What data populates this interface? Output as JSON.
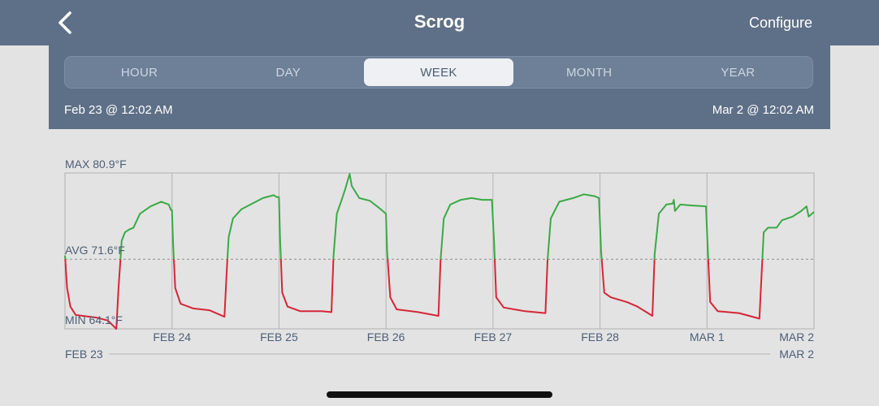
{
  "header": {
    "title": "Scrog",
    "configure_label": "Configure"
  },
  "icons": {
    "back": "chevron-left-icon"
  },
  "tabs": [
    {
      "label": "HOUR",
      "active": false
    },
    {
      "label": "DAY",
      "active": false
    },
    {
      "label": "WEEK",
      "active": true
    },
    {
      "label": "MONTH",
      "active": false
    },
    {
      "label": "YEAR",
      "active": false
    }
  ],
  "range": {
    "start": "Feb 23 @ 12:02 AM",
    "end": "Mar 2 @ 12:02 AM"
  },
  "footer_axis": {
    "start": "FEB 23",
    "end": "MAR 2"
  },
  "colors": {
    "above_avg": "#3aaa45",
    "below_avg": "#d62637",
    "header_bg": "#5e7087"
  },
  "chart_data": {
    "type": "line",
    "max_label": "MAX 80.9°F",
    "avg_label": "AVG 71.6°F",
    "min_label": "MIN 64.1°F",
    "ylim": [
      64.1,
      80.9
    ],
    "avg": 71.6,
    "xlim": [
      0,
      7
    ],
    "tick_labels": [
      "FEB 24",
      "FEB 25",
      "FEB 26",
      "FEB 27",
      "FEB 28",
      "MAR 1",
      "MAR 2"
    ],
    "tick_positions": [
      1,
      2,
      3,
      4,
      5,
      6,
      7
    ],
    "series": [
      {
        "values": [
          [
            0.0,
            72.0
          ],
          [
            0.02,
            68.5
          ],
          [
            0.05,
            66.5
          ],
          [
            0.1,
            65.6
          ],
          [
            0.3,
            65.3
          ],
          [
            0.4,
            65.0
          ],
          [
            0.48,
            64.1
          ],
          [
            0.5,
            68.5
          ],
          [
            0.53,
            73.6
          ],
          [
            0.56,
            74.5
          ],
          [
            0.6,
            74.8
          ],
          [
            0.64,
            75.0
          ],
          [
            0.7,
            76.5
          ],
          [
            0.8,
            77.3
          ],
          [
            0.9,
            77.8
          ],
          [
            0.97,
            77.5
          ],
          [
            0.99,
            76.9
          ],
          [
            1.0,
            76.9
          ],
          [
            1.01,
            73.5
          ],
          [
            1.03,
            68.5
          ],
          [
            1.08,
            66.8
          ],
          [
            1.2,
            66.3
          ],
          [
            1.35,
            66.1
          ],
          [
            1.49,
            65.4
          ],
          [
            1.51,
            70.0
          ],
          [
            1.53,
            74.0
          ],
          [
            1.57,
            76.0
          ],
          [
            1.65,
            77.0
          ],
          [
            1.75,
            77.6
          ],
          [
            1.85,
            78.2
          ],
          [
            1.95,
            78.5
          ],
          [
            1.98,
            78.3
          ],
          [
            2.0,
            78.3
          ],
          [
            2.01,
            74.0
          ],
          [
            2.03,
            68.0
          ],
          [
            2.08,
            66.5
          ],
          [
            2.2,
            66.0
          ],
          [
            2.4,
            66.0
          ],
          [
            2.49,
            65.9
          ],
          [
            2.51,
            72.0
          ],
          [
            2.54,
            76.5
          ],
          [
            2.58,
            77.8
          ],
          [
            2.62,
            79.2
          ],
          [
            2.66,
            80.8
          ],
          [
            2.68,
            79.5
          ],
          [
            2.75,
            78.2
          ],
          [
            2.85,
            77.9
          ],
          [
            2.95,
            77.0
          ],
          [
            3.0,
            76.5
          ],
          [
            3.01,
            72.5
          ],
          [
            3.04,
            67.5
          ],
          [
            3.1,
            66.2
          ],
          [
            3.3,
            65.9
          ],
          [
            3.49,
            65.5
          ],
          [
            3.51,
            71.5
          ],
          [
            3.54,
            76.0
          ],
          [
            3.6,
            77.5
          ],
          [
            3.7,
            78.0
          ],
          [
            3.8,
            78.2
          ],
          [
            3.9,
            78.0
          ],
          [
            3.99,
            78.0
          ],
          [
            4.01,
            73.5
          ],
          [
            4.03,
            67.5
          ],
          [
            4.1,
            66.4
          ],
          [
            4.3,
            66.0
          ],
          [
            4.49,
            65.8
          ],
          [
            4.51,
            71.5
          ],
          [
            4.54,
            76.0
          ],
          [
            4.62,
            77.8
          ],
          [
            4.75,
            78.2
          ],
          [
            4.85,
            78.6
          ],
          [
            4.95,
            78.4
          ],
          [
            4.99,
            78.2
          ],
          [
            5.01,
            72.5
          ],
          [
            5.04,
            68.0
          ],
          [
            5.1,
            67.5
          ],
          [
            5.25,
            67.0
          ],
          [
            5.35,
            66.5
          ],
          [
            5.49,
            65.5
          ],
          [
            5.51,
            72.0
          ],
          [
            5.55,
            76.5
          ],
          [
            5.62,
            77.5
          ],
          [
            5.68,
            77.6
          ],
          [
            5.69,
            78.0
          ],
          [
            5.7,
            76.8
          ],
          [
            5.75,
            77.5
          ],
          [
            5.85,
            77.4
          ],
          [
            5.99,
            77.3
          ],
          [
            6.01,
            72.0
          ],
          [
            6.03,
            67.0
          ],
          [
            6.1,
            66.0
          ],
          [
            6.3,
            65.8
          ],
          [
            6.49,
            65.2
          ],
          [
            6.51,
            70.0
          ],
          [
            6.53,
            74.5
          ],
          [
            6.57,
            75.0
          ],
          [
            6.65,
            75.0
          ],
          [
            6.7,
            75.8
          ],
          [
            6.8,
            76.2
          ],
          [
            6.88,
            76.8
          ],
          [
            6.93,
            77.3
          ],
          [
            6.95,
            76.2
          ],
          [
            6.98,
            76.5
          ],
          [
            7.0,
            76.7
          ]
        ]
      }
    ]
  }
}
